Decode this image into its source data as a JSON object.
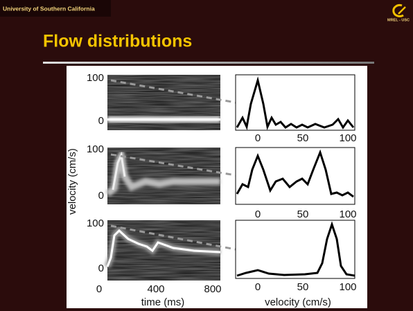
{
  "header": {
    "institution": "University of Southern California",
    "logo_text": "MREL - USC"
  },
  "slide": {
    "title": "Flow distributions"
  },
  "figure": {
    "y_label": "velocity (cm/s)",
    "spectrograms": [
      {
        "yticks": [
          "100",
          "0"
        ]
      },
      {
        "yticks": [
          "100",
          "0"
        ]
      },
      {
        "yticks": [
          "100",
          "0"
        ],
        "xticks": [
          "0",
          "400",
          "800"
        ]
      }
    ],
    "time_label": "time (ms)",
    "profiles": [
      {
        "xticks": [
          "0",
          "50",
          "100"
        ]
      },
      {
        "xticks": [
          "0",
          "50",
          "100"
        ]
      },
      {
        "xticks": [
          "0",
          "50",
          "100"
        ]
      }
    ],
    "velocity_label": "velocity (cm/s)"
  }
}
